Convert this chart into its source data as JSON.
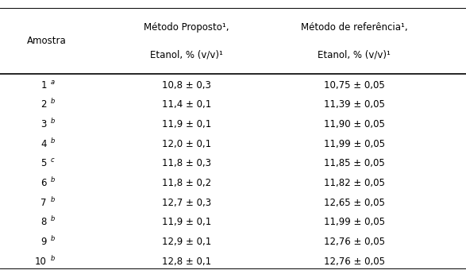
{
  "col_headers": [
    "Amostra",
    "Método Proposto¹,\nEtanol, % (v/v)¹",
    "Método de referência¹,\nEtanol, % (v/v)¹"
  ],
  "samples": [
    {
      "label": "1",
      "sup": "a",
      "proposed": "10,8 ± 0,3",
      "reference": "10,75 ± 0,05"
    },
    {
      "label": "2",
      "sup": "b",
      "proposed": "11,4 ± 0,1",
      "reference": "11,39 ± 0,05"
    },
    {
      "label": "3",
      "sup": "b",
      "proposed": "11,9 ± 0,1",
      "reference": "11,90 ± 0,05"
    },
    {
      "label": "4",
      "sup": "b",
      "proposed": "12,0 ± 0,1",
      "reference": "11,99 ± 0,05"
    },
    {
      "label": "5",
      "sup": "c",
      "proposed": "11,8 ± 0,3",
      "reference": "11,85 ± 0,05"
    },
    {
      "label": "6",
      "sup": "b",
      "proposed": "11,8 ± 0,2",
      "reference": "11,82 ± 0,05"
    },
    {
      "label": "7",
      "sup": "b",
      "proposed": "12,7 ± 0,3",
      "reference": "12,65 ± 0,05"
    },
    {
      "label": "8",
      "sup": "b",
      "proposed": "11,9 ± 0,1",
      "reference": "11,99 ± 0,05"
    },
    {
      "label": "9",
      "sup": "b",
      "proposed": "12,9 ± 0,1",
      "reference": "12,76 ± 0,05"
    },
    {
      "label": "10",
      "sup": "b",
      "proposed": "12,8 ± 0,1",
      "reference": "12,76 ± 0,05"
    }
  ],
  "bg_color": "#ffffff",
  "text_color": "#000000",
  "font_size": 8.5,
  "header_font_size": 8.5
}
